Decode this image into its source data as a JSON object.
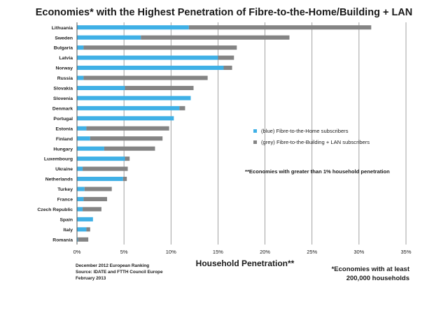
{
  "chart_data": {
    "type": "bar",
    "orientation": "horizontal",
    "stacked": true,
    "title": "Economies* with the Highest Penetration of Fibre-to-the-Home/Building + LAN",
    "xlabel": "Household Penetration**",
    "xlim": [
      0,
      35
    ],
    "xticks": [
      "0%",
      "5%",
      "10%",
      "15%",
      "20%",
      "25%",
      "30%",
      "35%"
    ],
    "grid": true,
    "categories": [
      "Lithuania",
      "Sweden",
      "Bulgaria",
      "Latvia",
      "Norway",
      "Russia",
      "Slovakia",
      "Slovenia",
      "Denmark",
      "Portugal",
      "Estonia",
      "Finland",
      "Hungary",
      "Luxembourg",
      "Ukraine",
      "Netherlands",
      "Turkey",
      "France",
      "Czech Republic",
      "Spain",
      "Italy",
      "Romania"
    ],
    "series": [
      {
        "name": "(blue) Fibre-to-the-Home subscribers",
        "color": "#3fb0e6",
        "values": [
          11.9,
          6.8,
          0.7,
          15.0,
          15.6,
          0.7,
          5.1,
          12.1,
          10.9,
          10.3,
          1.0,
          1.4,
          2.9,
          5.1,
          0.6,
          4.9,
          0.8,
          0.7,
          0.6,
          1.7,
          1.0,
          0.1
        ]
      },
      {
        "name": "(grey) Fibre-to-the-Building + LAN subscribers",
        "color": "#848484",
        "values": [
          19.4,
          15.8,
          16.3,
          1.7,
          0.9,
          13.2,
          7.3,
          0.0,
          0.6,
          0.0,
          8.8,
          7.7,
          5.4,
          0.5,
          4.8,
          0.4,
          2.9,
          2.5,
          2.0,
          0.0,
          0.4,
          1.1
        ]
      }
    ],
    "legend_position": "right-center"
  },
  "note": "**Economies with greater than 1% household penetration",
  "source_lines": [
    "December 2012 European Ranking",
    "Source: IDATE and FTTH Council Europe",
    "February 2013"
  ],
  "footnote_lines": [
    "*Economies with at least",
    "200,000 households"
  ]
}
